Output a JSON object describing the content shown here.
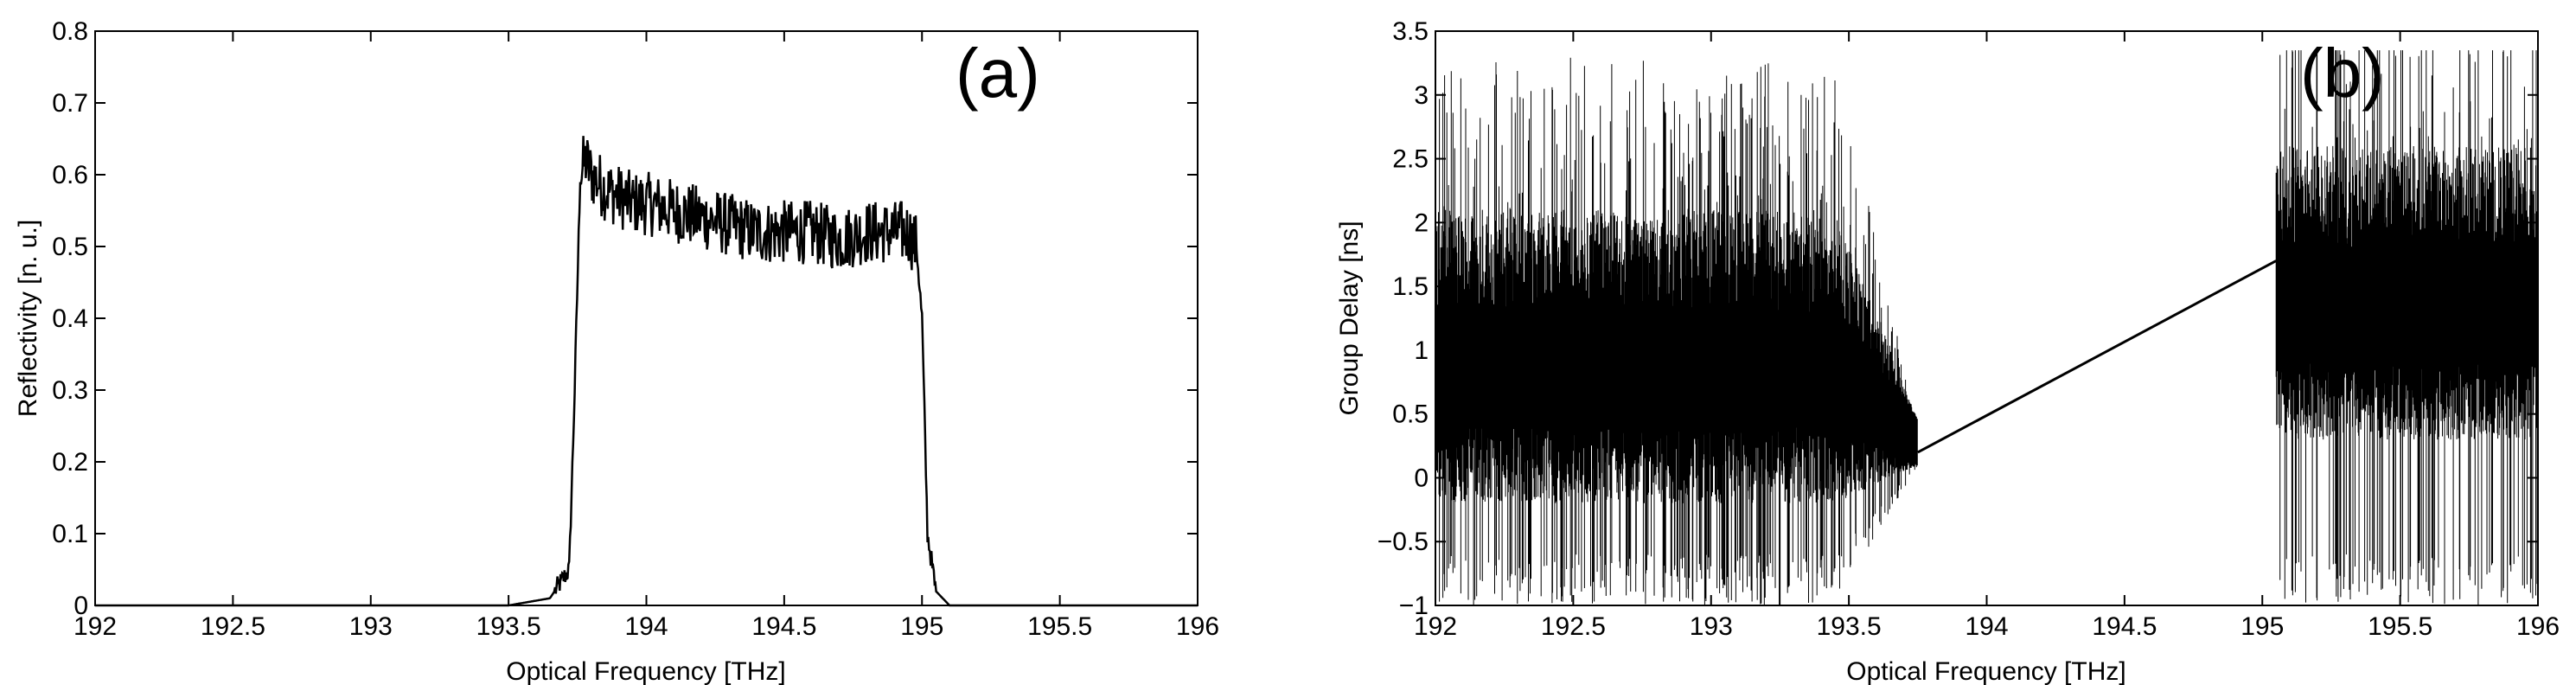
{
  "chart_data": [
    {
      "type": "line",
      "panel_label": "(a)",
      "xlabel": "Optical Frequency [THz]",
      "ylabel": "Reflectivity [n. u.]",
      "xlim": [
        192,
        196
      ],
      "ylim": [
        0,
        0.8
      ],
      "xticks": [
        "192",
        "192.5",
        "193",
        "193.5",
        "194",
        "194.5",
        "195",
        "195.5",
        "196"
      ],
      "yticks": [
        "0",
        "0.1",
        "0.2",
        "0.3",
        "0.4",
        "0.5",
        "0.6",
        "0.7",
        "0.8"
      ],
      "grid": false,
      "series": [
        {
          "x": [
            192.0,
            193.5,
            193.65,
            193.72,
            193.74,
            193.76,
            193.78,
            193.8,
            193.85,
            193.9,
            193.95,
            194.0,
            194.1,
            194.2,
            194.3,
            194.4,
            194.5,
            194.6,
            194.7,
            194.8,
            194.9,
            194.95,
            194.98,
            195.0,
            195.02,
            195.05,
            195.1,
            196.0
          ],
          "values": [
            0.0,
            0.0,
            0.01,
            0.05,
            0.3,
            0.6,
            0.62,
            0.6,
            0.58,
            0.57,
            0.56,
            0.56,
            0.55,
            0.54,
            0.53,
            0.52,
            0.52,
            0.52,
            0.51,
            0.52,
            0.52,
            0.52,
            0.5,
            0.4,
            0.1,
            0.02,
            0.0,
            0.0
          ]
        }
      ]
    },
    {
      "type": "line",
      "panel_label": "(b)",
      "xlabel": "Optical Frequency [THz]",
      "ylabel": "Group Delay [ns]",
      "xlim": [
        192,
        196
      ],
      "ylim": [
        -1,
        3.5
      ],
      "xticks": [
        "192",
        "192.5",
        "193",
        "193.5",
        "194",
        "194.5",
        "195",
        "195.5",
        "196"
      ],
      "yticks": [
        "−1",
        "−0.5",
        "0",
        "0.5",
        "1",
        "1.5",
        "2",
        "2.5",
        "3",
        "3.5"
      ],
      "grid": false,
      "series": [
        {
          "noisy_region_1": {
            "x": [
              192.0,
              193.75
            ],
            "center": 1.0,
            "spread": [
              -1,
              3.3
            ]
          },
          "linear_region": {
            "x": [
              193.75,
              195.05
            ],
            "values": [
              0.2,
              1.7
            ]
          },
          "noisy_region_2": {
            "x": [
              195.05,
              196.0
            ],
            "center": 1.5,
            "spread": [
              -1,
              3.3
            ]
          }
        }
      ]
    }
  ]
}
